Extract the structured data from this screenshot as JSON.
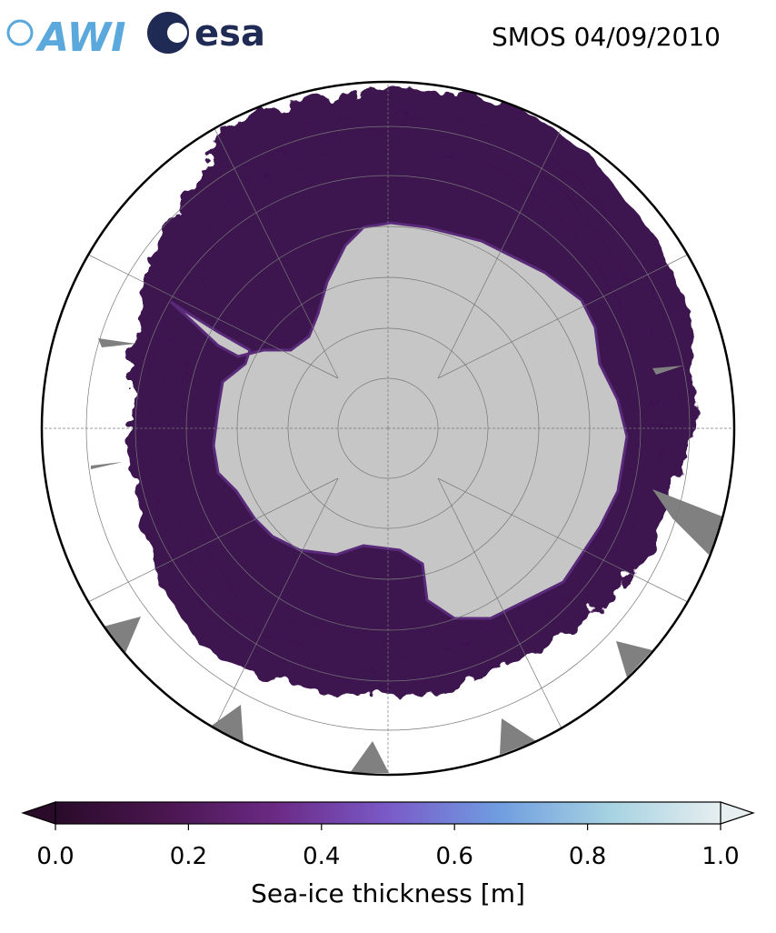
{
  "logos": [
    "AWI",
    "esa"
  ],
  "title": "SMOS 04/09/2010",
  "colorbar": {
    "label": "Sea-ice thickness [m]",
    "lim": [
      0,
      1
    ],
    "ticks": [
      {
        "value": 0,
        "label": "0.0"
      },
      {
        "value": 0.2,
        "label": "0.2"
      },
      {
        "value": 0.4,
        "label": "0.4"
      },
      {
        "value": 0.6,
        "label": "0.6"
      },
      {
        "value": 0.8,
        "label": "0.8"
      },
      {
        "value": 1,
        "label": "1.0"
      }
    ],
    "colormap": [
      "#2a0b2a",
      "#4a1650",
      "#6b2a85",
      "#7a5ac8",
      "#6f9de0",
      "#a6d2e2",
      "#e6eef0"
    ]
  }
}
